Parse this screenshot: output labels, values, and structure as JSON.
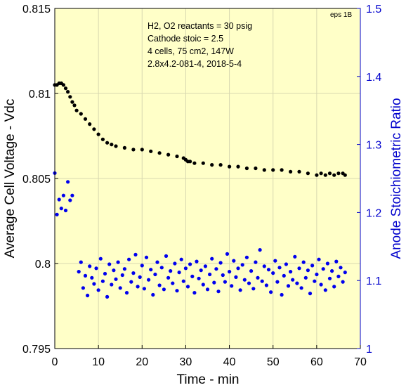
{
  "chart_data": {
    "type": "scatter",
    "xlabel": "Time - min",
    "ylabel_left": "Average Cell Voltage - Vdc",
    "ylabel_right": "Anode Stoichiometric Ratio",
    "xlim": [
      0,
      70
    ],
    "ylim_left": [
      0.795,
      0.815
    ],
    "ylim_right": [
      1.0,
      1.5
    ],
    "x_ticks": [
      "0",
      "10",
      "20",
      "30",
      "40",
      "50",
      "60",
      "70"
    ],
    "y_left_ticks": [
      "0.795",
      "0.8",
      "0.805",
      "0.81",
      "0.815"
    ],
    "y_right_ticks": [
      "1",
      "1.1",
      "1.2",
      "1.3",
      "1.4",
      "1.5"
    ],
    "grid": true,
    "background_color": "#ffffc8",
    "tag": "eps 1B",
    "annotations": [
      "H2, O2 reactants = 30 psig",
      "Cathode stoic = 2.5",
      "4 cells, 75 cm2, 147W",
      "2.8x4.2-081-4,  2018-5-4"
    ],
    "series": [
      {
        "axis": "left",
        "color": "#000000",
        "x": [
          0.0,
          0.5,
          1.0,
          1.5,
          2.0,
          2.5,
          3.0,
          3.5,
          4.0,
          4.5,
          5.0,
          6.0,
          7.0,
          8.0,
          9.0,
          10.0,
          11.0,
          12.0,
          13.0,
          14.0,
          16.0,
          18.0,
          20.0,
          22.0,
          24.0,
          26.0,
          28.0,
          29.5,
          30.0,
          30.5,
          31.0,
          32.0,
          34.0,
          36.0,
          38.0,
          40.0,
          42.0,
          44.0,
          46.0,
          48.0,
          50.0,
          52.0,
          54.0,
          56.0,
          58.0,
          60.0,
          61.0,
          62.0,
          63.0,
          64.0,
          65.0,
          66.0,
          66.5
        ],
        "y": [
          0.8105,
          0.8105,
          0.8106,
          0.8106,
          0.8105,
          0.8103,
          0.8101,
          0.8098,
          0.8095,
          0.8093,
          0.809,
          0.8088,
          0.8085,
          0.8082,
          0.8079,
          0.8076,
          0.8073,
          0.8071,
          0.807,
          0.8069,
          0.8068,
          0.8067,
          0.8067,
          0.8066,
          0.8065,
          0.8064,
          0.8063,
          0.8062,
          0.8061,
          0.806,
          0.806,
          0.8059,
          0.8059,
          0.8058,
          0.8058,
          0.8057,
          0.8057,
          0.8056,
          0.8056,
          0.8055,
          0.8055,
          0.8055,
          0.8054,
          0.8054,
          0.8053,
          0.8052,
          0.8053,
          0.8052,
          0.8053,
          0.8052,
          0.8053,
          0.8053,
          0.8052
        ]
      },
      {
        "axis": "right",
        "color": "#0000ee",
        "x": [
          0.0,
          0.5,
          1.0,
          1.5,
          2.0,
          2.5,
          3.0,
          3.5,
          4.0,
          5.5,
          6.0,
          6.5,
          7.0,
          7.5,
          8.0,
          8.5,
          9.0,
          9.5,
          10.0,
          10.5,
          11.0,
          11.5,
          12.0,
          12.5,
          13.0,
          13.5,
          14.0,
          14.5,
          15.0,
          15.5,
          16.0,
          16.5,
          17.0,
          17.5,
          18.0,
          18.5,
          19.0,
          19.5,
          20.0,
          20.5,
          21.0,
          21.5,
          22.0,
          22.5,
          23.0,
          23.5,
          24.0,
          24.5,
          25.0,
          25.5,
          26.0,
          26.5,
          27.0,
          27.5,
          28.0,
          28.5,
          29.0,
          29.5,
          30.0,
          30.5,
          31.0,
          31.5,
          32.0,
          32.5,
          33.0,
          33.5,
          34.0,
          34.5,
          35.0,
          35.5,
          36.0,
          36.5,
          37.0,
          37.5,
          38.0,
          38.5,
          39.0,
          39.5,
          40.0,
          40.5,
          41.0,
          41.5,
          42.0,
          42.5,
          43.0,
          43.5,
          44.0,
          44.5,
          45.0,
          45.5,
          46.0,
          46.5,
          47.0,
          47.5,
          48.0,
          48.5,
          49.0,
          49.5,
          50.0,
          50.5,
          51.0,
          51.5,
          52.0,
          52.5,
          53.0,
          53.5,
          54.0,
          54.5,
          55.0,
          55.5,
          56.0,
          56.5,
          57.0,
          57.5,
          58.0,
          58.5,
          59.0,
          59.5,
          60.0,
          60.5,
          61.0,
          61.5,
          62.0,
          62.5,
          63.0,
          63.5,
          64.0,
          64.5,
          65.0,
          65.5,
          66.0,
          66.5
        ],
        "y": [
          1.258,
          1.197,
          1.219,
          1.206,
          1.225,
          1.203,
          1.245,
          1.218,
          1.225,
          1.113,
          1.127,
          1.089,
          1.107,
          1.078,
          1.121,
          1.104,
          1.095,
          1.118,
          1.086,
          1.132,
          1.099,
          1.11,
          1.076,
          1.124,
          1.094,
          1.115,
          1.102,
          1.127,
          1.089,
          1.108,
          1.117,
          1.082,
          1.131,
          1.098,
          1.111,
          1.138,
          1.091,
          1.105,
          1.122,
          1.088,
          1.134,
          1.101,
          1.116,
          1.079,
          1.109,
          1.127,
          1.093,
          1.119,
          1.087,
          1.136,
          1.104,
          1.114,
          1.096,
          1.125,
          1.085,
          1.112,
          1.131,
          1.099,
          1.118,
          1.091,
          1.124,
          1.106,
          1.082,
          1.128,
          1.103,
          1.115,
          1.094,
          1.121,
          1.087,
          1.109,
          1.132,
          1.097,
          1.117,
          1.084,
          1.126,
          1.108,
          1.098,
          1.139,
          1.113,
          1.092,
          1.129,
          1.105,
          1.118,
          1.086,
          1.123,
          1.101,
          1.134,
          1.096,
          1.114,
          1.088,
          1.127,
          1.104,
          1.145,
          1.099,
          1.121,
          1.093,
          1.116,
          1.083,
          1.111,
          1.129,
          1.098,
          1.119,
          1.079,
          1.107,
          1.124,
          1.092,
          1.113,
          1.101,
          1.135,
          1.096,
          1.118,
          1.089,
          1.127,
          1.104,
          1.115,
          1.081,
          1.122,
          1.099,
          1.109,
          1.131,
          1.094,
          1.117,
          1.086,
          1.125,
          1.103,
          1.114,
          1.091,
          1.128,
          1.106,
          1.119,
          1.098,
          1.112
        ]
      }
    ]
  }
}
